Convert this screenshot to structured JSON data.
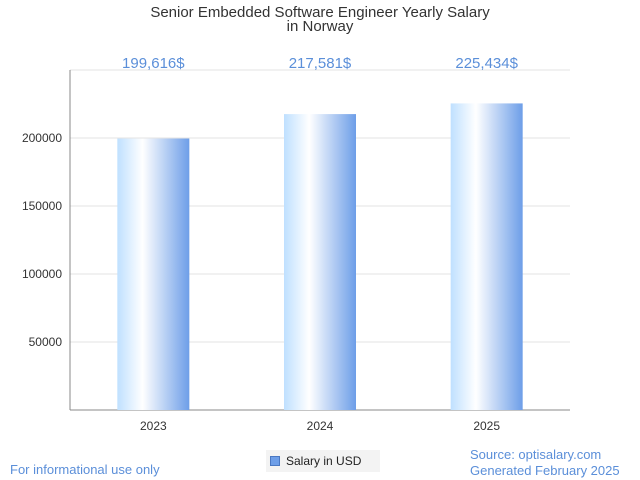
{
  "chart_data": {
    "type": "bar",
    "title_line1": "Senior Embedded Software Engineer Yearly Salary",
    "title_line2": "in Norway",
    "categories": [
      "2023",
      "2024",
      "2025"
    ],
    "values": [
      199616,
      217581,
      225434
    ],
    "value_labels": [
      "199,616$",
      "217,581$",
      "225,434$"
    ],
    "yticks": [
      50000,
      100000,
      150000,
      200000
    ],
    "ylim": [
      0,
      250000
    ],
    "grid": true,
    "legend": "bottom-center",
    "series": [
      {
        "name": "Salary in USD",
        "values": [
          199616,
          217581,
          225434
        ]
      }
    ],
    "colors": {
      "bar_light": "#ffffff",
      "bar_mid": "#bfe0ff",
      "bar_dark": "#6d9ee8",
      "label": "#5b8fd9",
      "grid": "#e3e3e3",
      "axis": "#888888"
    }
  },
  "footer": {
    "left": "For informational use only",
    "source": "Source: optisalary.com",
    "generated": "Generated February 2025"
  }
}
